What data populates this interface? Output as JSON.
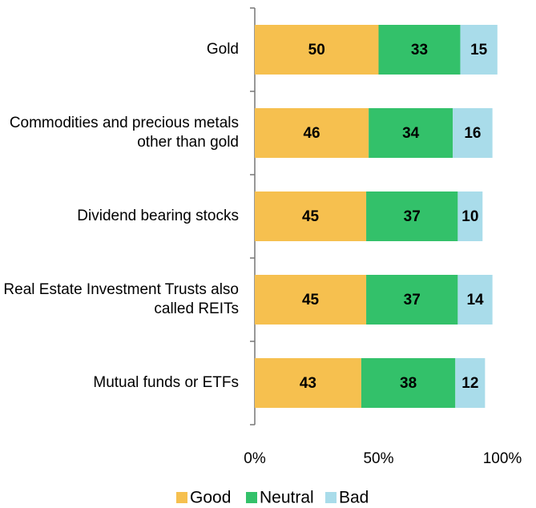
{
  "chart_data": {
    "type": "stacked_bar_horizontal",
    "categories": [
      "Gold",
      "Commodities and precious metals other than gold",
      "Dividend bearing stocks",
      "Real Estate Investment Trusts also called REITs",
      "Mutual funds or ETFs"
    ],
    "series": [
      {
        "name": "Good",
        "color": "#f6c04f",
        "values": [
          50,
          46,
          45,
          45,
          43
        ]
      },
      {
        "name": "Neutral",
        "color": "#33c16a",
        "values": [
          33,
          34,
          37,
          37,
          38
        ]
      },
      {
        "name": "Bad",
        "color": "#a9dcea",
        "values": [
          15,
          16,
          10,
          14,
          12
        ]
      }
    ],
    "xlim": [
      0,
      100
    ],
    "xticks": [
      {
        "value": 0,
        "label": "0%"
      },
      {
        "value": 50,
        "label": "50%"
      },
      {
        "value": 100,
        "label": "100%"
      }
    ],
    "legend": "bottom"
  }
}
